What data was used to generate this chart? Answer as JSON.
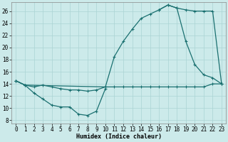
{
  "xlabel": "Humidex (Indice chaleur)",
  "bg_color": "#cceaea",
  "line_color": "#1a7070",
  "grid_color": "#aad4d4",
  "xlim": [
    -0.5,
    23.5
  ],
  "ylim": [
    7.5,
    27.5
  ],
  "xticks": [
    0,
    1,
    2,
    3,
    4,
    5,
    6,
    7,
    8,
    9,
    10,
    11,
    12,
    13,
    14,
    15,
    16,
    17,
    18,
    19,
    20,
    21,
    22,
    23
  ],
  "yticks": [
    8,
    10,
    12,
    14,
    16,
    18,
    20,
    22,
    24,
    26
  ],
  "series": [
    {
      "x": [
        0,
        1,
        2,
        3,
        4,
        5,
        6,
        7,
        8,
        9,
        10,
        11,
        12,
        13,
        14,
        15,
        16,
        17,
        18,
        19,
        20,
        21,
        22,
        23
      ],
      "y": [
        14.5,
        13.8,
        13.5,
        13.8,
        13.5,
        13.2,
        13.0,
        13.0,
        12.8,
        13.0,
        13.5,
        13.5,
        13.5,
        13.5,
        13.5,
        13.5,
        13.5,
        13.5,
        13.5,
        13.5,
        13.5,
        13.5,
        14.0,
        14.0
      ]
    },
    {
      "x": [
        0,
        1,
        2,
        3,
        4,
        5,
        6,
        7,
        8,
        9,
        10
      ],
      "y": [
        14.5,
        13.8,
        12.5,
        11.5,
        10.5,
        10.2,
        10.2,
        9.0,
        8.8,
        9.5,
        13.2
      ]
    },
    {
      "x": [
        0,
        1,
        10,
        11,
        12,
        13,
        14,
        15,
        16,
        17,
        18,
        19,
        20,
        21,
        22,
        23
      ],
      "y": [
        14.5,
        13.8,
        13.5,
        18.5,
        21.0,
        23.0,
        24.8,
        25.5,
        26.2,
        27.0,
        26.5,
        26.2,
        26.0,
        26.0,
        26.0,
        14.0
      ]
    },
    {
      "x": [
        16,
        17,
        18,
        19,
        20,
        21,
        22,
        23
      ],
      "y": [
        26.2,
        27.0,
        26.5,
        21.0,
        17.2,
        15.5,
        15.0,
        14.0
      ]
    }
  ]
}
